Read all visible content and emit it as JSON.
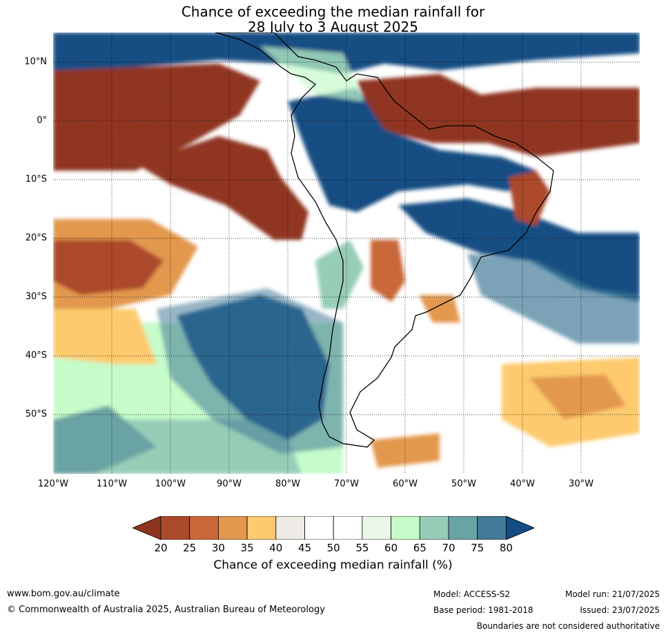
{
  "title": {
    "line1": "Chance of exceeding the median rainfall for",
    "line2": "28 July to 3 August 2025"
  },
  "map": {
    "lat_labels": [
      "10°N",
      "0°",
      "10°S",
      "20°S",
      "30°S",
      "40°S",
      "50°S"
    ],
    "lon_labels": [
      "120°W",
      "110°W",
      "100°W",
      "90°W",
      "80°W",
      "70°W",
      "60°W",
      "50°W",
      "40°W",
      "30°W"
    ]
  },
  "colorbar": {
    "ticks": [
      "20",
      "25",
      "30",
      "35",
      "40",
      "45",
      "50",
      "55",
      "60",
      "65",
      "70",
      "75",
      "80"
    ],
    "colors": [
      "#8f3420",
      "#ab4a2a",
      "#c9673a",
      "#e2984e",
      "#fdcb6e",
      "#eeebe6",
      "#ffffff",
      "#ffffff",
      "#e9f6e8",
      "#c6fbca",
      "#97cdb6",
      "#6aa3a4",
      "#427a98",
      "#134d83"
    ],
    "label": "Chance of exceeding median rainfall (%)"
  },
  "footer": {
    "website": "www.bom.gov.au/climate",
    "copyright": "© Commonwealth of Australia 2025, Australian Bureau of Meteorology",
    "model": "Model: ACCESS-S2",
    "base_period": "Base period: 1981-2018",
    "model_run": "Model run: 21/07/2025",
    "issued": "Issued: 23/07/2025",
    "disclaimer": "Boundaries are not considered authoritative"
  }
}
